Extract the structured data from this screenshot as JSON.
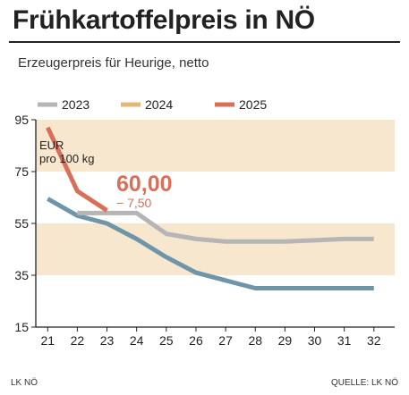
{
  "title": "Frühkartoffelpreis in NÖ",
  "subtitle": "Erzeugerpreis für Heurige, netto",
  "chart_data": {
    "type": "line",
    "unit_label": [
      "EUR",
      "pro 100 kg"
    ],
    "x": [
      21,
      22,
      23,
      24,
      25,
      26,
      27,
      28,
      29,
      30,
      31,
      32
    ],
    "x_tick_labels": [
      "21",
      "22",
      "23",
      "24",
      "25",
      "26",
      "27",
      "28",
      "29",
      "30",
      "31",
      "32"
    ],
    "y_ticks": [
      15,
      35,
      55,
      75,
      95
    ],
    "y_tick_labels": [
      "15",
      "35",
      "55",
      "75",
      "95"
    ],
    "xlim": [
      20.6,
      32.7
    ],
    "ylim": [
      15,
      95
    ],
    "shaded_bands": [
      [
        35,
        55
      ],
      [
        75,
        95
      ]
    ],
    "grid": false,
    "legend_position": "top",
    "series": [
      {
        "name": "2023",
        "color": "#b5b5b5",
        "x": [
          22,
          23,
          24,
          25,
          26,
          27,
          28,
          29,
          30,
          31,
          32
        ],
        "values": [
          59,
          59,
          59,
          51,
          49,
          48,
          48,
          48,
          48.5,
          49,
          49
        ]
      },
      {
        "name": "2024",
        "color": "#e6b877",
        "x": [
          21,
          22,
          23,
          24,
          25,
          26,
          27,
          28,
          29,
          30,
          31,
          32
        ],
        "values": [
          64.5,
          58,
          55,
          49,
          42,
          36,
          33,
          30,
          30,
          30,
          30,
          30
        ]
      },
      {
        "name": "2025",
        "color": "#d96f5a",
        "x": [
          21,
          22,
          23
        ],
        "values": [
          92,
          67.5,
          60
        ]
      }
    ],
    "line_colors": {
      "2024_line": "#6f95a8"
    },
    "band_color": "#f7e7cf",
    "annotation": {
      "value": "60,00",
      "change": "− 7,50",
      "color": "#d96f5a"
    }
  },
  "footer": {
    "left": "LK NÖ",
    "right": "QUELLE: LK NÖ"
  }
}
